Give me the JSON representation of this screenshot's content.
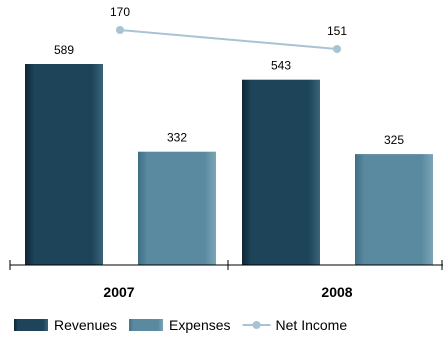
{
  "chart_data": {
    "type": "bar",
    "categories": [
      "2007",
      "2008"
    ],
    "series": [
      {
        "name": "Revenues",
        "kind": "bar",
        "color": "#1d4459",
        "values": [
          589,
          543
        ]
      },
      {
        "name": "Expenses",
        "kind": "bar",
        "color": "#5a8aa0",
        "values": [
          332,
          325
        ]
      },
      {
        "name": "Net Income",
        "kind": "line",
        "color": "#a9c3d3",
        "values": [
          170,
          151
        ]
      }
    ],
    "data_labels": true,
    "grid": false,
    "legend_position": "bottom-left"
  }
}
